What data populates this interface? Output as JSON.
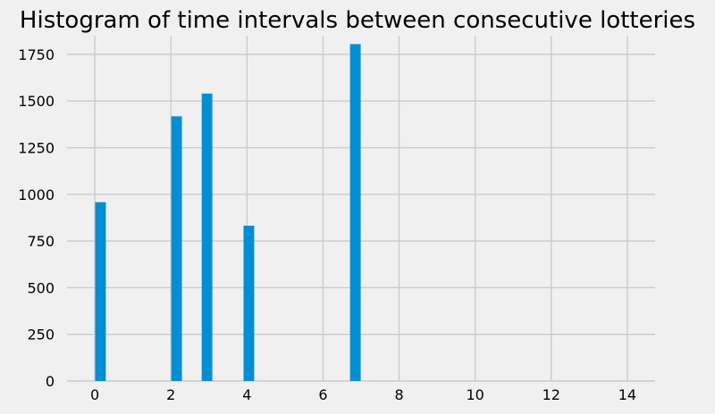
{
  "chart_data": {
    "type": "bar",
    "title": "Histogram of time intervals between consecutive lotteries",
    "xlabel": "",
    "ylabel": "",
    "x": [
      0.15,
      2.15,
      2.95,
      4.05,
      6.85
    ],
    "values": [
      958,
      1418,
      1540,
      832,
      1805
    ],
    "bin_width": 0.28,
    "xlim": [
      -0.73,
      14.73
    ],
    "ylim": [
      0,
      1850
    ],
    "xticks": [
      0,
      2,
      4,
      6,
      8,
      10,
      12,
      14
    ],
    "yticks": [
      0,
      250,
      500,
      750,
      1000,
      1250,
      1500,
      1750
    ],
    "xtick_labels": [
      "0",
      "2",
      "4",
      "6",
      "8",
      "10",
      "12",
      "14"
    ],
    "ytick_labels": [
      "0",
      "250",
      "500",
      "750",
      "1000",
      "1250",
      "1500",
      "1750"
    ],
    "grid": true,
    "legend": "none",
    "colors": {
      "background": "#f0f0f0",
      "bar": "#008fd5",
      "grid": "#cbcbcb",
      "text": "#000000"
    }
  }
}
